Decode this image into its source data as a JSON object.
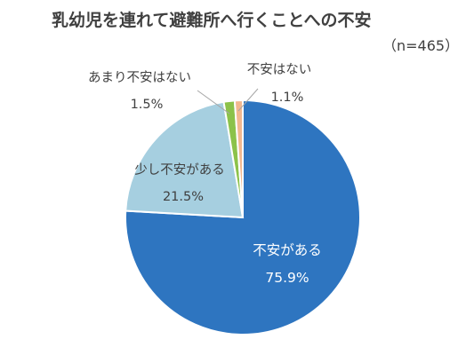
{
  "chart_data": {
    "type": "pie",
    "title": "乳幼児を連れて避難所へ行くことへの不安",
    "subtitle": "（n=465）",
    "slices": [
      {
        "label": "不安がある",
        "value": 75.9,
        "value_label": "75.9%",
        "color": "#2e75c0"
      },
      {
        "label": "少し不安がある",
        "value": 21.5,
        "value_label": "21.5%",
        "color": "#a6cfe0"
      },
      {
        "label": "あまり不安はない",
        "value": 1.5,
        "value_label": "1.5%",
        "color": "#8cc24a"
      },
      {
        "label": "不安はない",
        "value": 1.1,
        "value_label": "1.1%",
        "color": "#f3b88f"
      }
    ],
    "start_angle": "12 o'clock",
    "direction": "clockwise"
  }
}
